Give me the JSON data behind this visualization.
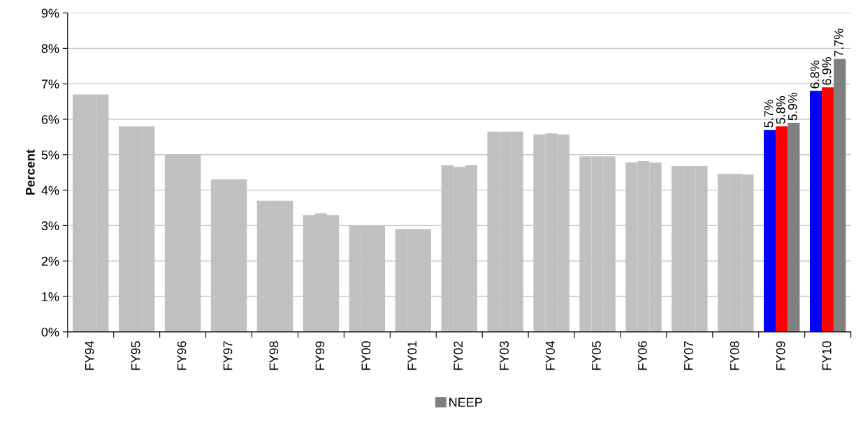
{
  "chart_data": {
    "type": "bar",
    "ylabel": "Percent",
    "categories": [
      "FY94",
      "FY95",
      "FY96",
      "FY97",
      "FY98",
      "FY99",
      "FY00",
      "FY01",
      "FY02",
      "FY03",
      "FY04",
      "FY05",
      "FY06",
      "FY07",
      "FY08",
      "FY09",
      "FY10"
    ],
    "series": [
      {
        "color": "#0000ff",
        "colors": [
          "#c0c0c0",
          "#c0c0c0",
          "#c0c0c0",
          "#c0c0c0",
          "#c0c0c0",
          "#c0c0c0",
          "#c0c0c0",
          "#c0c0c0",
          "#c0c0c0",
          "#c0c0c0",
          "#c0c0c0",
          "#c0c0c0",
          "#c0c0c0",
          "#c0c0c0",
          "#c0c0c0",
          "#0000ff",
          "#0000ff"
        ],
        "values": [
          6.7,
          5.8,
          5.0,
          4.3,
          3.7,
          3.3,
          3.0,
          2.9,
          4.7,
          5.65,
          5.57,
          4.95,
          4.78,
          4.68,
          4.46,
          5.7,
          6.8
        ],
        "value_labels": [
          null,
          null,
          null,
          null,
          null,
          null,
          null,
          null,
          null,
          null,
          null,
          null,
          null,
          null,
          null,
          "5.7%",
          "6.8%"
        ]
      },
      {
        "color": "#ff0000",
        "colors": [
          "#c0c0c0",
          "#c0c0c0",
          "#c0c0c0",
          "#c0c0c0",
          "#c0c0c0",
          "#c0c0c0",
          "#c0c0c0",
          "#c0c0c0",
          "#c0c0c0",
          "#c0c0c0",
          "#c0c0c0",
          "#c0c0c0",
          "#c0c0c0",
          "#c0c0c0",
          "#c0c0c0",
          "#ff0000",
          "#ff0000"
        ],
        "values": [
          6.7,
          5.8,
          5.0,
          4.3,
          3.7,
          3.35,
          3.0,
          2.9,
          4.65,
          5.65,
          5.6,
          4.95,
          4.82,
          4.68,
          4.46,
          5.8,
          6.9
        ],
        "value_labels": [
          null,
          null,
          null,
          null,
          null,
          null,
          null,
          null,
          null,
          null,
          null,
          null,
          null,
          null,
          null,
          "5.8%",
          "6.9%"
        ]
      },
      {
        "name": "NEEP",
        "color": "#808080",
        "colors": [
          "#c0c0c0",
          "#c0c0c0",
          "#c0c0c0",
          "#c0c0c0",
          "#c0c0c0",
          "#c0c0c0",
          "#c0c0c0",
          "#c0c0c0",
          "#c0c0c0",
          "#c0c0c0",
          "#c0c0c0",
          "#c0c0c0",
          "#c0c0c0",
          "#c0c0c0",
          "#c0c0c0",
          "#808080",
          "#808080"
        ],
        "values": [
          6.7,
          5.8,
          5.0,
          4.3,
          3.7,
          3.3,
          3.0,
          2.9,
          4.7,
          5.65,
          5.57,
          4.95,
          4.78,
          4.68,
          4.44,
          5.9,
          7.7
        ],
        "value_labels": [
          null,
          null,
          null,
          null,
          null,
          null,
          null,
          null,
          null,
          null,
          null,
          null,
          null,
          null,
          null,
          "5.9%",
          "7.7%"
        ]
      }
    ],
    "ylim": [
      0,
      9
    ],
    "yticks": [
      {
        "value": 0,
        "label": "0%"
      },
      {
        "value": 1,
        "label": "1%"
      },
      {
        "value": 2,
        "label": "2%"
      },
      {
        "value": 3,
        "label": "3%"
      },
      {
        "value": 4,
        "label": "4%"
      },
      {
        "value": 5,
        "label": "5%"
      },
      {
        "value": 6,
        "label": "6%"
      },
      {
        "value": 7,
        "label": "7%"
      },
      {
        "value": 8,
        "label": "8%"
      },
      {
        "value": 9,
        "label": "9%"
      }
    ],
    "grid": "y",
    "legend": "bottom"
  }
}
